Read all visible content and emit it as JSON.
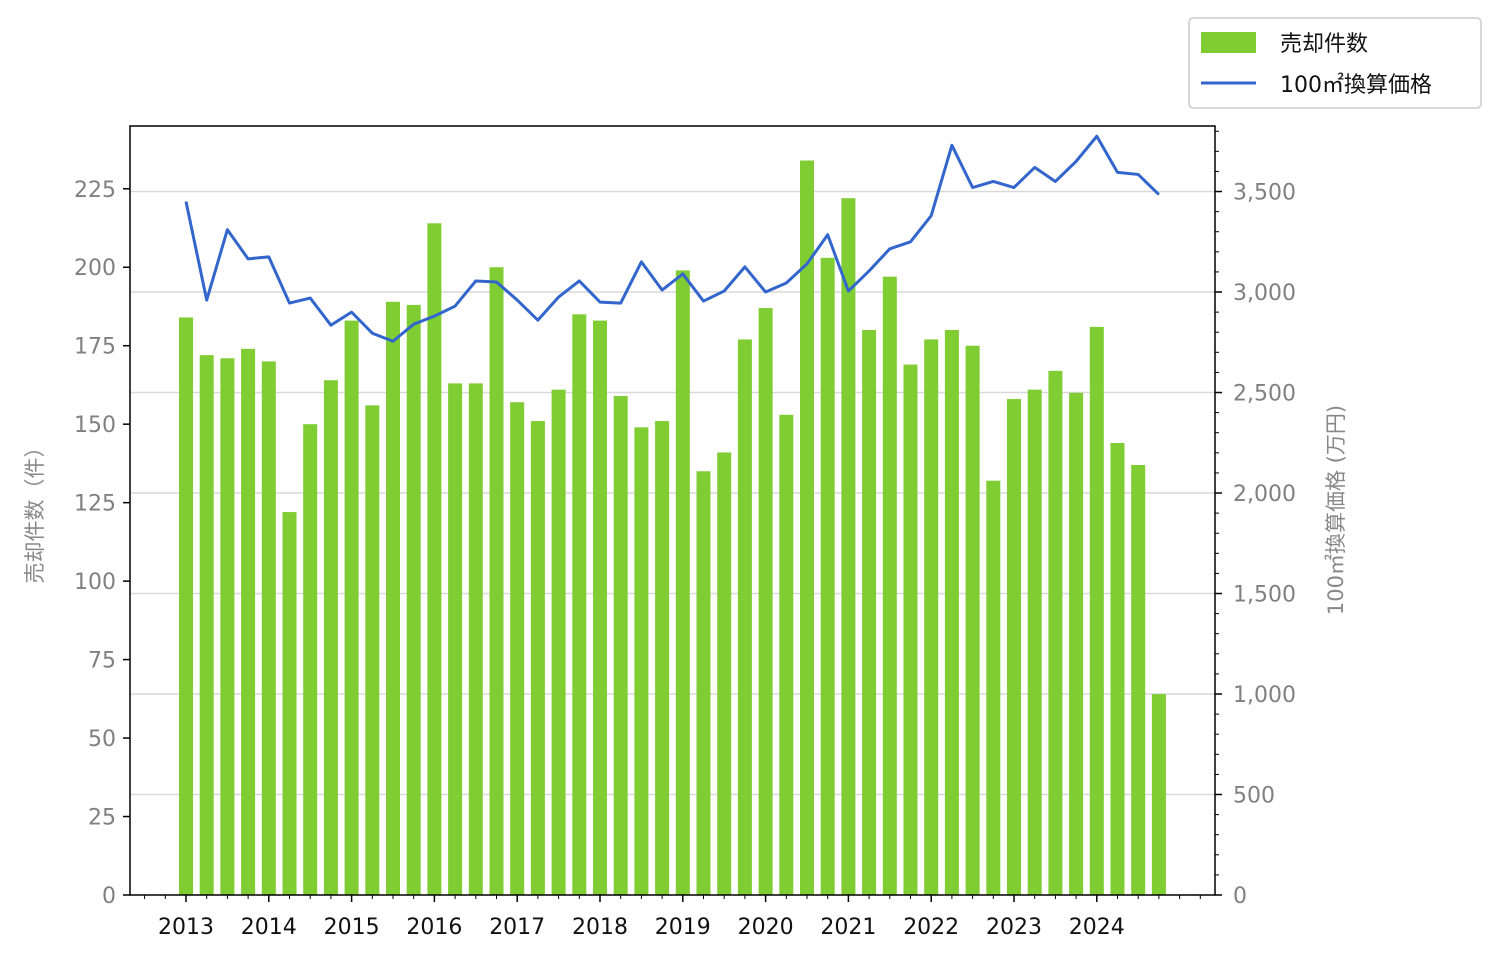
{
  "chart_data": {
    "type": "bar+line",
    "y_left_label": "売却件数（件）",
    "y_right_label": "100㎡換算価格 (万円)",
    "y_left_ticks": [
      "0",
      "25",
      "50",
      "75",
      "100",
      "125",
      "150",
      "175",
      "200",
      "225"
    ],
    "y_right_ticks": [
      "0",
      "500",
      "1,000",
      "1,500",
      "2,000",
      "2,500",
      "3,000",
      "3,500"
    ],
    "x_tick_labels": [
      "2013",
      "2014",
      "2015",
      "2016",
      "2017",
      "2018",
      "2019",
      "2020",
      "2021",
      "2022",
      "2023",
      "2024"
    ],
    "ylim_left": [
      0,
      245
    ],
    "ylim_right": [
      0,
      3826
    ],
    "grid": "horizontal",
    "legend_position": "top-right",
    "series": [
      {
        "name": "売却件数",
        "kind": "bar",
        "color": "#7fcc33",
        "values": [
          184,
          172,
          171,
          174,
          170,
          122,
          150,
          164,
          183,
          156,
          189,
          188,
          214,
          163,
          163,
          200,
          157,
          151,
          161,
          185,
          183,
          159,
          149,
          151,
          199,
          135,
          141,
          177,
          187,
          153,
          234,
          203,
          222,
          180,
          197,
          169,
          177,
          180,
          175,
          132,
          158,
          161,
          167,
          160,
          181,
          144,
          137,
          64
        ]
      },
      {
        "name": "100㎡換算価格",
        "kind": "line",
        "color": "#3366cc",
        "values": [
          3450,
          2960,
          3310,
          3165,
          3175,
          2945,
          2970,
          2835,
          2900,
          2795,
          2755,
          2840,
          2880,
          2930,
          3055,
          3050,
          2960,
          2860,
          2975,
          3055,
          2950,
          2945,
          3150,
          3010,
          3090,
          2955,
          3005,
          3125,
          3000,
          3045,
          3140,
          3285,
          3005,
          3105,
          3215,
          3250,
          3380,
          3730,
          3520,
          3550,
          3520,
          3620,
          3550,
          3650,
          3775,
          3595,
          3585,
          3485
        ]
      }
    ]
  }
}
